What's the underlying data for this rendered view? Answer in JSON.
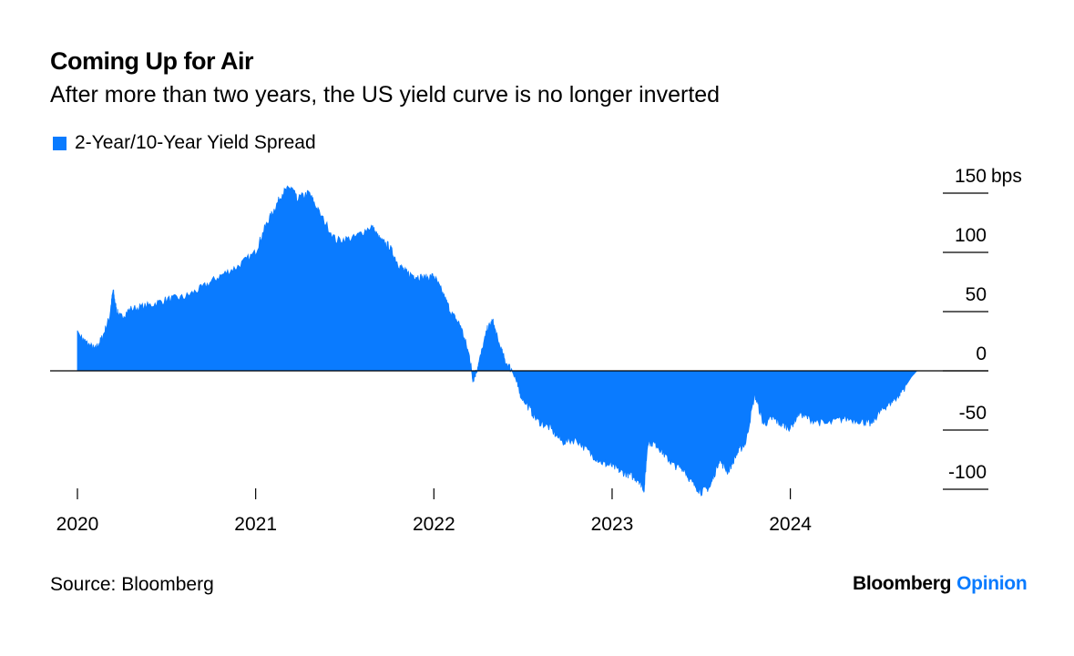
{
  "header": {
    "title": "Coming Up for Air",
    "subtitle": "After more than two years, the US yield curve is no longer inverted"
  },
  "footer": {
    "source": "Source: Bloomberg",
    "brand_primary": "Bloomberg",
    "brand_secondary": "Opinion"
  },
  "colors": {
    "series": "#0a7bff",
    "brand_secondary": "#0a7bff",
    "axis": "#000000"
  },
  "chart_data": {
    "type": "area",
    "title": "Coming Up for Air",
    "subtitle": "After more than two years, the US yield curve is no longer inverted",
    "xlabel": "",
    "ylabel": "",
    "y_unit": "bps",
    "xlim": [
      2020.0,
      2024.83
    ],
    "ylim": [
      -100,
      150
    ],
    "x_ticks": [
      {
        "value": 2020,
        "label": "2020"
      },
      {
        "value": 2021,
        "label": "2021"
      },
      {
        "value": 2022,
        "label": "2022"
      },
      {
        "value": 2023,
        "label": "2023"
      },
      {
        "value": 2024,
        "label": "2024"
      }
    ],
    "y_ticks": [
      {
        "value": 150,
        "label": "150",
        "unit": "bps"
      },
      {
        "value": 100,
        "label": "100"
      },
      {
        "value": 50,
        "label": "50"
      },
      {
        "value": 0,
        "label": "0"
      },
      {
        "value": -50,
        "label": "-50"
      },
      {
        "value": -100,
        "label": "-100"
      }
    ],
    "grid": false,
    "legend_position": "top-left",
    "series": [
      {
        "name": "2-Year/10-Year Yield Spread",
        "color": "#0a7bff",
        "x": [
          2020.0,
          2020.02,
          2020.06,
          2020.1,
          2020.14,
          2020.18,
          2020.2,
          2020.22,
          2020.24,
          2020.3,
          2020.4,
          2020.5,
          2020.6,
          2020.7,
          2020.8,
          2020.9,
          2021.0,
          2021.05,
          2021.1,
          2021.15,
          2021.2,
          2021.23,
          2021.3,
          2021.35,
          2021.45,
          2021.55,
          2021.65,
          2021.7,
          2021.75,
          2021.8,
          2021.85,
          2021.9,
          2021.95,
          2022.0,
          2022.05,
          2022.1,
          2022.15,
          2022.2,
          2022.22,
          2022.25,
          2022.3,
          2022.33,
          2022.36,
          2022.4,
          2022.45,
          2022.48,
          2022.52,
          2022.58,
          2022.65,
          2022.72,
          2022.8,
          2022.88,
          2022.95,
          2023.0,
          2023.05,
          2023.1,
          2023.15,
          2023.18,
          2023.2,
          2023.25,
          2023.3,
          2023.35,
          2023.4,
          2023.45,
          2023.5,
          2023.55,
          2023.6,
          2023.65,
          2023.7,
          2023.75,
          2023.8,
          2023.85,
          2023.9,
          2023.95,
          2024.0,
          2024.05,
          2024.1,
          2024.2,
          2024.3,
          2024.4,
          2024.45,
          2024.5,
          2024.55,
          2024.6,
          2024.65,
          2024.68,
          2024.71
        ],
        "values": [
          34,
          28,
          22,
          18,
          28,
          45,
          68,
          50,
          45,
          52,
          55,
          60,
          62,
          70,
          80,
          88,
          100,
          120,
          135,
          150,
          155,
          145,
          150,
          135,
          110,
          112,
          122,
          110,
          105,
          90,
          82,
          80,
          78,
          80,
          65,
          48,
          38,
          12,
          -8,
          5,
          35,
          42,
          25,
          8,
          -2,
          -18,
          -28,
          -42,
          -48,
          -60,
          -58,
          -70,
          -78,
          -80,
          -85,
          -88,
          -92,
          -100,
          -60,
          -62,
          -72,
          -80,
          -82,
          -95,
          -102,
          -98,
          -75,
          -85,
          -70,
          -60,
          -20,
          -45,
          -40,
          -45,
          -48,
          -35,
          -40,
          -45,
          -40,
          -42,
          -45,
          -35,
          -28,
          -22,
          -12,
          -5,
          0
        ]
      }
    ]
  }
}
